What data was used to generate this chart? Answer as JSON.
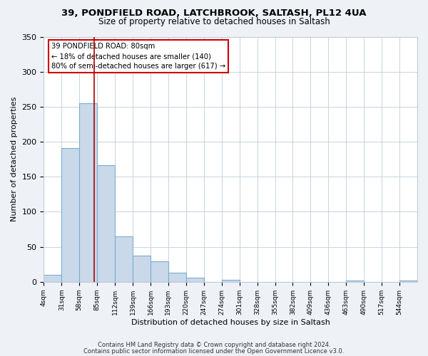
{
  "title1": "39, PONDFIELD ROAD, LATCHBROOK, SALTASH, PL12 4UA",
  "title2": "Size of property relative to detached houses in Saltash",
  "xlabel": "Distribution of detached houses by size in Saltash",
  "ylabel": "Number of detached properties",
  "bar_labels": [
    "4sqm",
    "31sqm",
    "58sqm",
    "85sqm",
    "112sqm",
    "139sqm",
    "166sqm",
    "193sqm",
    "220sqm",
    "247sqm",
    "274sqm",
    "301sqm",
    "328sqm",
    "355sqm",
    "382sqm",
    "409sqm",
    "436sqm",
    "463sqm",
    "490sqm",
    "517sqm",
    "544sqm"
  ],
  "bar_values": [
    10,
    191,
    255,
    167,
    65,
    37,
    29,
    13,
    6,
    0,
    3,
    0,
    0,
    0,
    0,
    0,
    0,
    2,
    0,
    0,
    2
  ],
  "bar_color": "#c9d9ea",
  "bar_edgecolor": "#7badd0",
  "vline_x": 80,
  "vline_color": "#aa0000",
  "annotation_line1": "39 PONDFIELD ROAD: 80sqm",
  "annotation_line2": "← 18% of detached houses are smaller (140)",
  "annotation_line3": "80% of semi-detached houses are larger (617) →",
  "annotation_box_edgecolor": "#cc0000",
  "annotation_box_facecolor": "#ffffff",
  "ylim": [
    0,
    350
  ],
  "yticks": [
    0,
    50,
    100,
    150,
    200,
    250,
    300,
    350
  ],
  "footnote1": "Contains HM Land Registry data © Crown copyright and database right 2024.",
  "footnote2": "Contains public sector information licensed under the Open Government Licence v3.0.",
  "background_color": "#eef2f7",
  "plot_background": "#ffffff",
  "grid_color": "#c0ccd8",
  "bin_width": 27
}
